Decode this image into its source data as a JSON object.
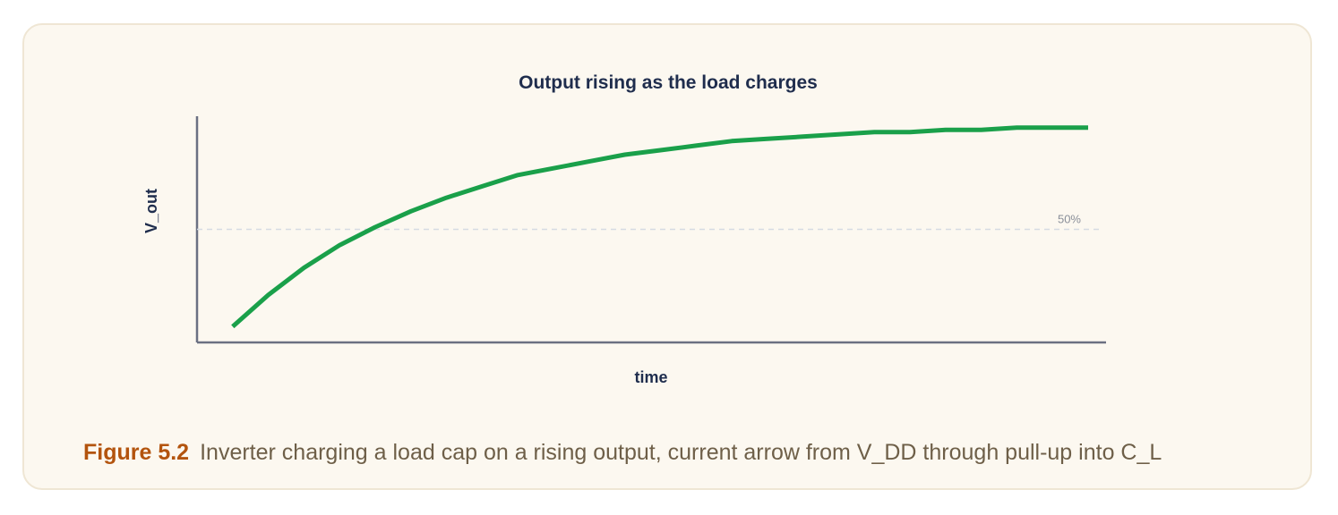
{
  "figure": {
    "label": "Figure 5.2",
    "caption": "Inverter charging a load cap on a rising output, current arrow from V_DD through pull-up into C_L"
  },
  "chart_data": {
    "type": "line",
    "title": "Output rising as the load charges",
    "xlabel": "time",
    "ylabel": "V_out",
    "grid": false,
    "reference_lines": [
      {
        "axis": "y",
        "value": 0.5,
        "label": "50%"
      }
    ],
    "ylim": [
      0,
      1
    ],
    "series": [
      {
        "values_note": "",
        "x": [
          0.2,
          0.4,
          0.6,
          0.8,
          1.0,
          1.2,
          1.4,
          1.6,
          1.8,
          2.0,
          2.2,
          2.4,
          2.6,
          2.8,
          3.0,
          3.2,
          3.4,
          3.6,
          3.8,
          4.0,
          4.2,
          4.4,
          4.6,
          4.8,
          5.0
        ],
        "y": [
          0.07,
          0.21,
          0.33,
          0.43,
          0.51,
          0.58,
          0.64,
          0.69,
          0.74,
          0.77,
          0.8,
          0.83,
          0.85,
          0.87,
          0.89,
          0.9,
          0.91,
          0.92,
          0.93,
          0.93,
          0.94,
          0.94,
          0.95,
          0.95,
          0.95
        ],
        "color": "#1aa04a"
      }
    ],
    "colors": {
      "axis": "#6b7082",
      "reference": "#d6dbe3",
      "reference_label": "#8a8f99",
      "title": "#1f2d4d"
    }
  }
}
